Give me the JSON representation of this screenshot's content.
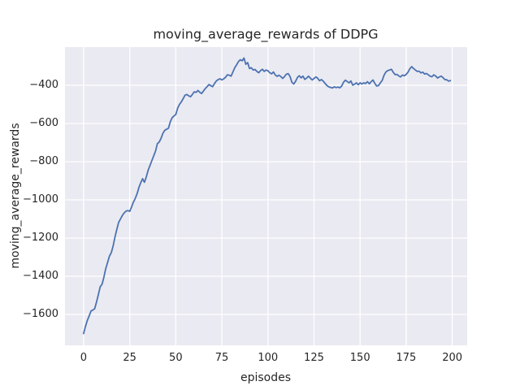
{
  "chart_data": {
    "type": "line",
    "title": "moving_average_rewards of DDPG",
    "xlabel": "episodes",
    "ylabel": "moving_average_rewards",
    "xticks": [
      0,
      25,
      50,
      75,
      100,
      125,
      150,
      175,
      200
    ],
    "yticks": [
      -400,
      -600,
      -800,
      -1000,
      -1200,
      -1400,
      -1600
    ],
    "xlim": [
      -10.1,
      208.1
    ],
    "ylim": [
      -1761.7,
      -200
    ],
    "grid": true,
    "legend": "none",
    "colors": {
      "line": "#4C72B0",
      "plot_background": "#EAEAF2",
      "grid": "#FFFFFF",
      "figure_background": "#FFFFFF",
      "text": "#262626"
    },
    "series": [
      {
        "name": "moving_average_rewards",
        "color": "#4C72B0",
        "x_start": 0,
        "x_step": 1,
        "values": [
          -1700,
          -1663,
          -1632,
          -1608,
          -1582,
          -1577,
          -1570,
          -1535,
          -1496,
          -1455,
          -1442,
          -1405,
          -1360,
          -1328,
          -1295,
          -1277,
          -1242,
          -1195,
          -1155,
          -1118,
          -1100,
          -1082,
          -1068,
          -1059,
          -1056,
          -1060,
          -1038,
          -1012,
          -993,
          -968,
          -935,
          -910,
          -889,
          -908,
          -880,
          -845,
          -820,
          -795,
          -770,
          -745,
          -706,
          -697,
          -678,
          -652,
          -636,
          -630,
          -625,
          -592,
          -570,
          -561,
          -553,
          -520,
          -500,
          -487,
          -470,
          -452,
          -448,
          -455,
          -460,
          -448,
          -434,
          -437,
          -427,
          -436,
          -443,
          -430,
          -417,
          -407,
          -396,
          -402,
          -407,
          -391,
          -377,
          -370,
          -366,
          -372,
          -366,
          -358,
          -345,
          -347,
          -352,
          -330,
          -308,
          -293,
          -276,
          -266,
          -272,
          -257,
          -290,
          -281,
          -312,
          -308,
          -320,
          -317,
          -327,
          -334,
          -323,
          -316,
          -327,
          -320,
          -324,
          -334,
          -340,
          -330,
          -346,
          -353,
          -347,
          -354,
          -364,
          -354,
          -342,
          -339,
          -354,
          -384,
          -393,
          -379,
          -359,
          -350,
          -361,
          -352,
          -369,
          -362,
          -352,
          -362,
          -372,
          -364,
          -356,
          -363,
          -376,
          -370,
          -378,
          -390,
          -401,
          -408,
          -411,
          -414,
          -408,
          -412,
          -409,
          -413,
          -404,
          -384,
          -373,
          -380,
          -387,
          -377,
          -399,
          -394,
          -387,
          -397,
          -387,
          -393,
          -387,
          -391,
          -381,
          -392,
          -381,
          -372,
          -390,
          -404,
          -401,
          -387,
          -374,
          -347,
          -330,
          -323,
          -320,
          -316,
          -332,
          -344,
          -343,
          -351,
          -356,
          -346,
          -350,
          -343,
          -331,
          -313,
          -302,
          -312,
          -320,
          -327,
          -326,
          -335,
          -331,
          -341,
          -338,
          -345,
          -352,
          -355,
          -345,
          -351,
          -362,
          -356,
          -352,
          -360,
          -370,
          -371,
          -378,
          -375
        ]
      }
    ]
  }
}
